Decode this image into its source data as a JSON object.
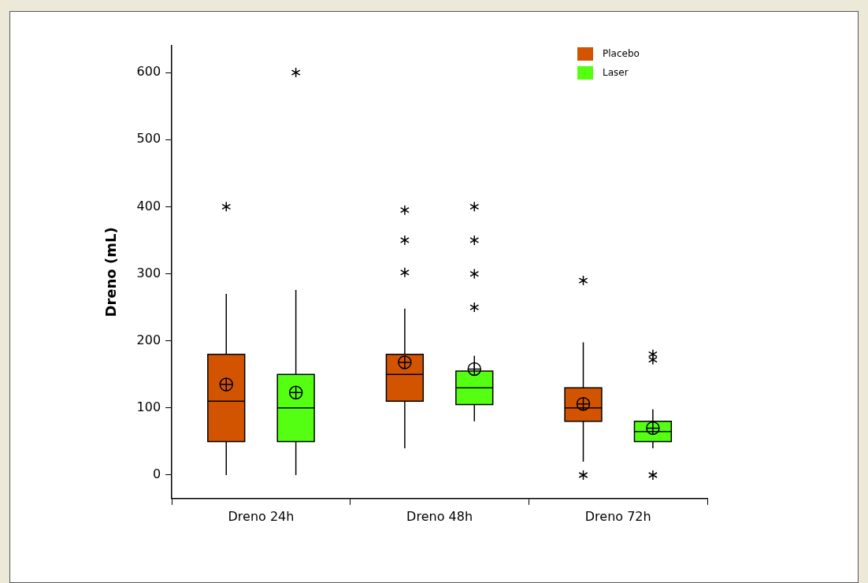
{
  "chart_data": {
    "type": "box",
    "ylabel": "Dreno (mL)",
    "categories": [
      "Dreno 24h",
      "Dreno 48h",
      "Dreno 72h"
    ],
    "series": [
      {
        "name": "Placebo",
        "color": "#d35400",
        "boxes": [
          {
            "low": 0,
            "q1": 50,
            "median": 110,
            "q3": 180,
            "high": 270,
            "mean": 135,
            "outliers": [
              400
            ]
          },
          {
            "low": 40,
            "q1": 110,
            "median": 150,
            "q3": 180,
            "high": 248,
            "mean": 168,
            "outliers": [
              302,
              350,
              395
            ]
          },
          {
            "low": 20,
            "q1": 80,
            "median": 100,
            "q3": 130,
            "high": 198,
            "mean": 106,
            "outliers": [
              0,
              290
            ]
          }
        ]
      },
      {
        "name": "Laser",
        "color": "#55ff11",
        "boxes": [
          {
            "low": 0,
            "q1": 50,
            "median": 100,
            "q3": 150,
            "high": 276,
            "mean": 123,
            "outliers": [
              600
            ]
          },
          {
            "low": 80,
            "q1": 105,
            "median": 130,
            "q3": 155,
            "high": 178,
            "mean": 158,
            "outliers": [
              250,
              300,
              350,
              400
            ]
          },
          {
            "low": 40,
            "q1": 50,
            "median": 65,
            "q3": 80,
            "high": 98,
            "mean": 70,
            "outliers": [
              0,
              172,
              180
            ]
          }
        ]
      }
    ],
    "ylim": [
      -35,
      640
    ],
    "yticks": [
      0,
      100,
      200,
      300,
      400,
      500,
      600
    ],
    "grid": false,
    "legend": "top right"
  }
}
